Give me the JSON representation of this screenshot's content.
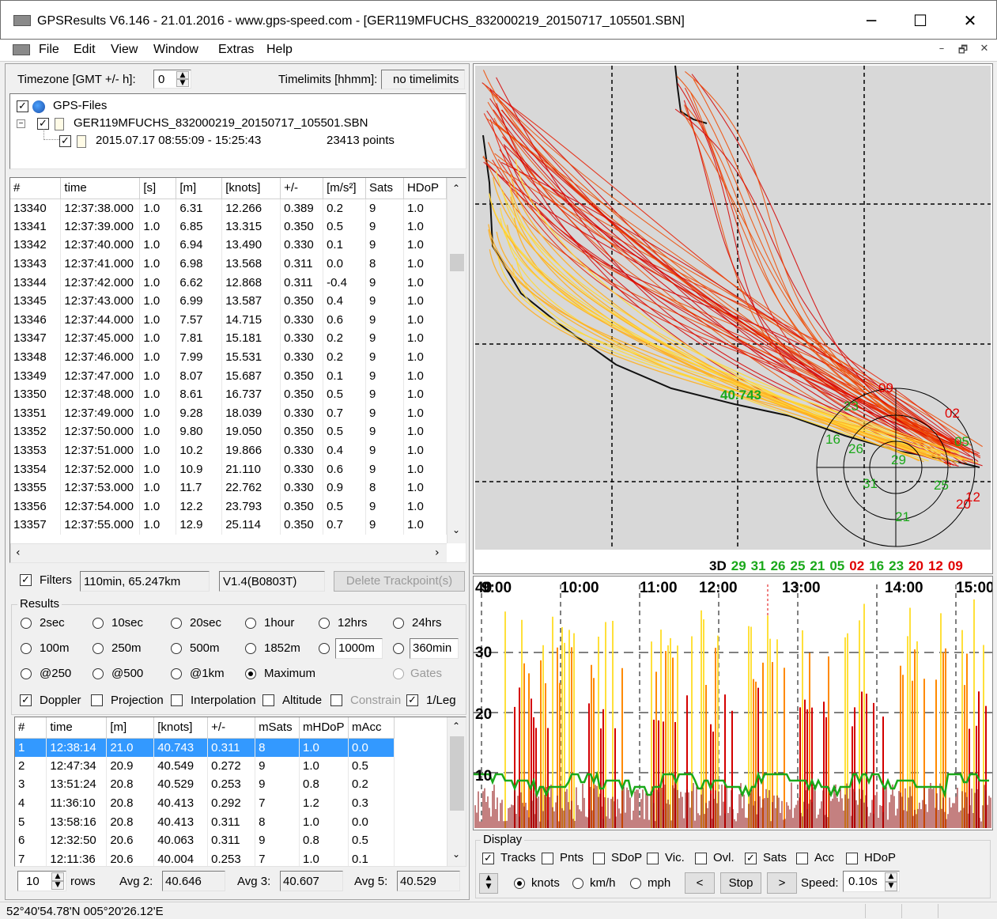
{
  "window": {
    "title": "GPSResults V6.146 - 21.01.2016 - www.gps-speed.com - [GER119MFUCHS_832000219_20150717_105501.SBN]",
    "minimize": "─",
    "maximize": "☐",
    "close": "✕"
  },
  "menu": {
    "items": [
      "File",
      "Edit",
      "View",
      "Window",
      "Extras",
      "Help"
    ],
    "mdi_min": "–",
    "mdi_restore": "🗗",
    "mdi_close": "✕"
  },
  "top": {
    "timezone_label": "Timezone [GMT +/- h]:",
    "timezone_value": "0",
    "timelimits_label": "Timelimits [hhmm]:",
    "timelimits_value": "no timelimits"
  },
  "tree": {
    "root": "GPS-Files",
    "file": "GER119MFUCHS_832000219_20150717_105501.SBN",
    "session": "2015.07.17 08:55:09 - 15:25:43",
    "points": "23413 points"
  },
  "points_table": {
    "headers": [
      "#",
      "time",
      "[s]",
      "[m]",
      "[knots]",
      "+/-",
      "[m/s²]",
      "Sats",
      "HDoP"
    ],
    "rows": [
      [
        "13340",
        "12:37:38.000",
        "1.0",
        "6.31",
        "12.266",
        "0.389",
        "0.2",
        "9",
        "1.0"
      ],
      [
        "13341",
        "12:37:39.000",
        "1.0",
        "6.85",
        "13.315",
        "0.350",
        "0.5",
        "9",
        "1.0"
      ],
      [
        "13342",
        "12:37:40.000",
        "1.0",
        "6.94",
        "13.490",
        "0.330",
        "0.1",
        "9",
        "1.0"
      ],
      [
        "13343",
        "12:37:41.000",
        "1.0",
        "6.98",
        "13.568",
        "0.311",
        "0.0",
        "8",
        "1.0"
      ],
      [
        "13344",
        "12:37:42.000",
        "1.0",
        "6.62",
        "12.868",
        "0.311",
        "-0.4",
        "9",
        "1.0"
      ],
      [
        "13345",
        "12:37:43.000",
        "1.0",
        "6.99",
        "13.587",
        "0.350",
        "0.4",
        "9",
        "1.0"
      ],
      [
        "13346",
        "12:37:44.000",
        "1.0",
        "7.57",
        "14.715",
        "0.330",
        "0.6",
        "9",
        "1.0"
      ],
      [
        "13347",
        "12:37:45.000",
        "1.0",
        "7.81",
        "15.181",
        "0.330",
        "0.2",
        "9",
        "1.0"
      ],
      [
        "13348",
        "12:37:46.000",
        "1.0",
        "7.99",
        "15.531",
        "0.330",
        "0.2",
        "9",
        "1.0"
      ],
      [
        "13349",
        "12:37:47.000",
        "1.0",
        "8.07",
        "15.687",
        "0.350",
        "0.1",
        "9",
        "1.0"
      ],
      [
        "13350",
        "12:37:48.000",
        "1.0",
        "8.61",
        "16.737",
        "0.350",
        "0.5",
        "9",
        "1.0"
      ],
      [
        "13351",
        "12:37:49.000",
        "1.0",
        "9.28",
        "18.039",
        "0.330",
        "0.7",
        "9",
        "1.0"
      ],
      [
        "13352",
        "12:37:50.000",
        "1.0",
        "9.80",
        "19.050",
        "0.350",
        "0.5",
        "9",
        "1.0"
      ],
      [
        "13353",
        "12:37:51.000",
        "1.0",
        "10.2",
        "19.866",
        "0.330",
        "0.4",
        "9",
        "1.0"
      ],
      [
        "13354",
        "12:37:52.000",
        "1.0",
        "10.9",
        "21.110",
        "0.330",
        "0.6",
        "9",
        "1.0"
      ],
      [
        "13355",
        "12:37:53.000",
        "1.0",
        "11.7",
        "22.762",
        "0.330",
        "0.9",
        "8",
        "1.0"
      ],
      [
        "13356",
        "12:37:54.000",
        "1.0",
        "12.2",
        "23.793",
        "0.350",
        "0.5",
        "9",
        "1.0"
      ],
      [
        "13357",
        "12:37:55.000",
        "1.0",
        "12.9",
        "25.114",
        "0.350",
        "0.7",
        "9",
        "1.0"
      ]
    ]
  },
  "filters": {
    "label": "Filters",
    "summary": "110min, 65.247km",
    "version": "V1.4(B0803T)",
    "delete_button": "Delete Trackpoint(s)"
  },
  "results": {
    "group_label": "Results",
    "radios_row1": [
      "2sec",
      "10sec",
      "20sec",
      "1hour",
      "12hrs",
      "24hrs"
    ],
    "radios_row2": [
      "100m",
      "250m",
      "500m",
      "1852m"
    ],
    "custom_distance": "1000m",
    "custom_time": "360min",
    "radios_row3": [
      "@250",
      "@500",
      "@1km",
      "Maximum"
    ],
    "gates": "Gates",
    "checks": [
      "Doppler",
      "Projection",
      "Interpolation",
      "Altitude",
      "Constrain",
      "1/Leg"
    ]
  },
  "results_table": {
    "headers": [
      "#",
      "time",
      "[m]",
      "[knots]",
      "+/-",
      "mSats",
      "mHDoP",
      "mAcc"
    ],
    "rows": [
      [
        "1",
        "12:38:14",
        "21.0",
        "40.743",
        "0.311",
        "8",
        "1.0",
        "0.0"
      ],
      [
        "2",
        "12:47:34",
        "20.9",
        "40.549",
        "0.272",
        "9",
        "1.0",
        "0.5"
      ],
      [
        "3",
        "13:51:24",
        "20.8",
        "40.529",
        "0.253",
        "9",
        "0.8",
        "0.2"
      ],
      [
        "4",
        "11:36:10",
        "20.8",
        "40.413",
        "0.292",
        "7",
        "1.2",
        "0.3"
      ],
      [
        "5",
        "13:58:16",
        "20.8",
        "40.413",
        "0.311",
        "8",
        "1.0",
        "0.0"
      ],
      [
        "6",
        "12:32:50",
        "20.6",
        "40.063",
        "0.311",
        "9",
        "0.8",
        "0.5"
      ],
      [
        "7",
        "12:11:36",
        "20.6",
        "40.004",
        "0.253",
        "7",
        "1.0",
        "0.1"
      ]
    ]
  },
  "bottom": {
    "rows_value": "10",
    "rows_label": "rows",
    "avg2_label": "Avg 2:",
    "avg2_value": "40.646",
    "avg3_label": "Avg 3:",
    "avg3_value": "40.607",
    "avg5_label": "Avg 5:",
    "avg5_value": "40.529"
  },
  "map": {
    "speed_marker": "40.743",
    "fix_label": "3D",
    "sats_green": [
      "29",
      "31",
      "26",
      "25",
      "21",
      "05"
    ],
    "sats_red_1": [
      "02"
    ],
    "sats_green_2": [
      "16",
      "23"
    ],
    "sats_red_2": [
      "20",
      "12",
      "09"
    ],
    "sky_labels_green": [
      "16",
      "26",
      "23",
      "29",
      "31",
      "25",
      "21",
      "05"
    ],
    "sky_labels_red": [
      "09",
      "02",
      "20",
      "12"
    ]
  },
  "speed_chart": {
    "time_labels": [
      "9:00",
      "10:00",
      "11:00",
      "12:00",
      "13:00",
      "14:00",
      "15:00"
    ],
    "y_labels": [
      "40",
      "30",
      "20",
      "10"
    ]
  },
  "display": {
    "group_label": "Display",
    "checks": [
      {
        "label": "Tracks",
        "checked": true
      },
      {
        "label": "Pnts",
        "checked": false
      },
      {
        "label": "SDoP",
        "checked": false
      },
      {
        "label": "Vic.",
        "checked": false
      },
      {
        "label": "Ovl.",
        "checked": false
      },
      {
        "label": "Sats",
        "checked": true
      },
      {
        "label": "Acc",
        "checked": false
      },
      {
        "label": "HDoP",
        "checked": false
      }
    ],
    "units": [
      "knots",
      "km/h",
      "mph"
    ],
    "prev": "<",
    "stop": "Stop",
    "next": ">",
    "speed_label": "Speed:",
    "speed_value": "0.10s"
  },
  "status": {
    "coords": "52°40'54.78'N 005°20'26.12'E"
  },
  "colors": {
    "selection": "#3399ff",
    "track_red": "#d40000",
    "track_yellow": "#ffe23a",
    "sat_green": "#1aa81a",
    "sat_red": "#e00000"
  }
}
